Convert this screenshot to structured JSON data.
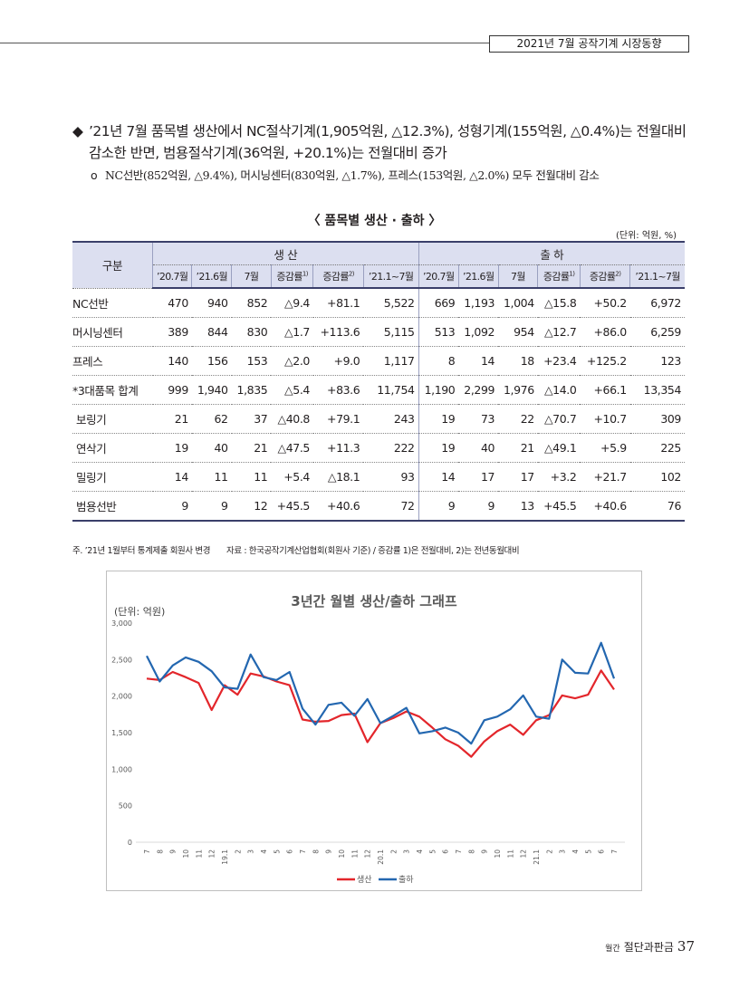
{
  "header": {
    "title": "2021년 7월 공작기계 시장동향"
  },
  "summary": {
    "main_line1": "’21년 7월 품목별 생산에서 NC절삭기계(1,905억원, △12.3%), 성형기계(155억원, △0.4%)는 전월대비",
    "main_line2": "감소한 반면, 범용절삭기계(36억원, +20.1%)는 전월대비 증가",
    "sub": "NC선반(852억원, △9.4%), 머시닝센터(830억원, △1.7%), 프레스(153억원, △2.0%) 모두 전월대비 감소"
  },
  "table": {
    "title": "〈 품목별 생산 · 출하 〉",
    "unit": "(단위: 억원, %)",
    "gubun": "구분",
    "group_prod": "생 산",
    "group_ship": "출 하",
    "cols": [
      "’20.7월",
      "’21.6월",
      "7월",
      "증감률",
      "증감률",
      "’21.1~7월"
    ],
    "sup1": "1)",
    "sup2": "2)",
    "rows": [
      {
        "name": "NC선반",
        "p": [
          "470",
          "940",
          "852",
          "△9.4",
          "+81.1",
          "5,522"
        ],
        "s": [
          "669",
          "1,193",
          "1,004",
          "△15.8",
          "+50.2",
          "6,972"
        ]
      },
      {
        "name": "머시닝센터",
        "p": [
          "389",
          "844",
          "830",
          "△1.7",
          "+113.6",
          "5,115"
        ],
        "s": [
          "513",
          "1,092",
          "954",
          "△12.7",
          "+86.0",
          "6,259"
        ]
      },
      {
        "name": "프레스",
        "p": [
          "140",
          "156",
          "153",
          "△2.0",
          "+9.0",
          "1,117"
        ],
        "s": [
          "8",
          "14",
          "18",
          "+23.4",
          "+125.2",
          "123"
        ]
      },
      {
        "name": "*3대품목 합계",
        "p": [
          "999",
          "1,940",
          "1,835",
          "△5.4",
          "+83.6",
          "11,754"
        ],
        "s": [
          "1,190",
          "2,299",
          "1,976",
          "△14.0",
          "+66.1",
          "13,354"
        ]
      },
      {
        "name": "보링기",
        "p": [
          "21",
          "62",
          "37",
          "△40.8",
          "+79.1",
          "243"
        ],
        "s": [
          "19",
          "73",
          "22",
          "△70.7",
          "+10.7",
          "309"
        ]
      },
      {
        "name": "연삭기",
        "p": [
          "19",
          "40",
          "21",
          "△47.5",
          "+11.3",
          "222"
        ],
        "s": [
          "19",
          "40",
          "21",
          "△49.1",
          "+5.9",
          "225"
        ]
      },
      {
        "name": "밀링기",
        "p": [
          "14",
          "11",
          "11",
          "+5.4",
          "△18.1",
          "93"
        ],
        "s": [
          "14",
          "17",
          "17",
          "+3.2",
          "+21.7",
          "102"
        ]
      },
      {
        "name": "범용선반",
        "p": [
          "9",
          "9",
          "12",
          "+45.5",
          "+40.6",
          "72"
        ],
        "s": [
          "9",
          "9",
          "13",
          "+45.5",
          "+40.6",
          "76"
        ]
      }
    ]
  },
  "note": {
    "left": "주. ’21년 1월부터 통계제출 회원사 변경",
    "right": "자료 : 한국공작기계산업협회(회원사 기준) / 증감률 1)은 전월대비, 2)는 전년동월대비"
  },
  "chart_data": {
    "type": "line",
    "title": "3년간 월별 생산/출하 그래프",
    "ylabel": "(단위: 억원)",
    "ylim": [
      0,
      3000
    ],
    "yticks": [
      "3,000",
      "2,500",
      "2,000",
      "1,500",
      "1,000",
      "500",
      "0"
    ],
    "categories": [
      "7",
      "8",
      "9",
      "10",
      "11",
      "12",
      "19.1",
      "2",
      "3",
      "4",
      "5",
      "6",
      "7",
      "8",
      "9",
      "10",
      "11",
      "12",
      "20.1",
      "2",
      "3",
      "4",
      "5",
      "6",
      "7",
      "8",
      "9",
      "10",
      "11",
      "12",
      "21.1",
      "2",
      "3",
      "4",
      "5",
      "6",
      "7"
    ],
    "series": [
      {
        "name": "생산",
        "color": "#e3262b",
        "values": [
          2240,
          2220,
          2330,
          2260,
          2180,
          1810,
          2150,
          2020,
          2310,
          2270,
          2200,
          2150,
          1680,
          1650,
          1660,
          1740,
          1760,
          1370,
          1630,
          1700,
          1790,
          1720,
          1570,
          1410,
          1320,
          1170,
          1380,
          1520,
          1610,
          1470,
          1670,
          1740,
          2010,
          1970,
          2020,
          2350,
          2090
        ]
      },
      {
        "name": "출하",
        "color": "#2367b0",
        "values": [
          2550,
          2200,
          2420,
          2530,
          2470,
          2340,
          2120,
          2100,
          2570,
          2260,
          2220,
          2330,
          1830,
          1610,
          1880,
          1910,
          1730,
          1960,
          1630,
          1730,
          1840,
          1490,
          1520,
          1570,
          1500,
          1350,
          1670,
          1720,
          1820,
          2010,
          1720,
          1690,
          2500,
          2320,
          2310,
          2730,
          2240
        ]
      }
    ],
    "legend": "bottom"
  },
  "footer": {
    "magazine_small": "월간",
    "magazine": "절단과판금",
    "page": "37"
  }
}
